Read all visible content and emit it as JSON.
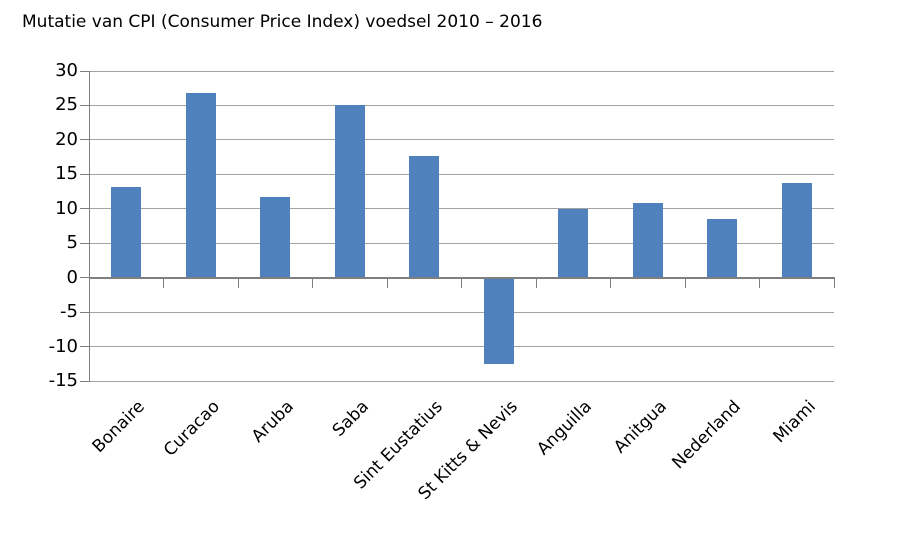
{
  "title": "Mutatie van CPI (Consumer Price Index) voedsel 2010 – 2016",
  "chart_data": {
    "type": "bar",
    "title": "Mutatie van CPI (Consumer Price Index) voedsel 2010 – 2016",
    "categories": [
      "Bonaire",
      "Curacao",
      "Aruba",
      "Saba",
      "Sint Eustatius",
      "St Kitts & Nevis",
      "Anguilla",
      "Anitgua",
      "Nederland",
      "Miami"
    ],
    "values": [
      13.1,
      26.8,
      11.7,
      25.0,
      17.6,
      -12.6,
      10.0,
      10.9,
      8.5,
      13.8
    ],
    "xlabel": "",
    "ylabel": "",
    "ylim": [
      -15,
      30
    ],
    "ytick_step": 5,
    "yticks": [
      30,
      25,
      20,
      15,
      10,
      5,
      0,
      -5,
      -10,
      -15
    ],
    "grid": true,
    "legend": false,
    "x_tick_label_rotation_deg": -45,
    "colors": {
      "bar_fill": "#4f81bd",
      "gridline": "#a3a3a3",
      "axis": "#7f7f7f",
      "text": "#000000",
      "background": "#ffffff"
    }
  }
}
